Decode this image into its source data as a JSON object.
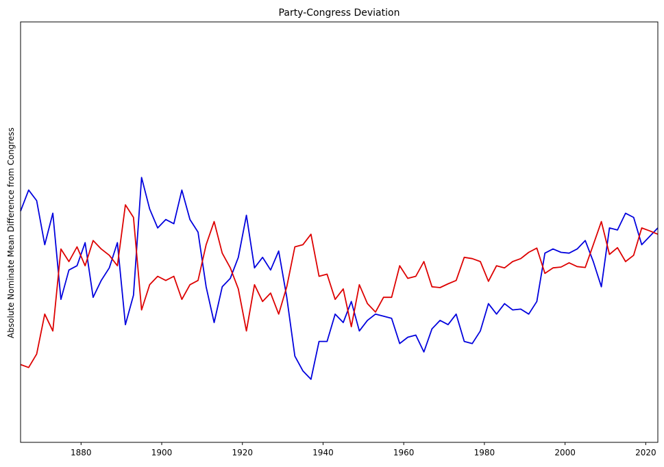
{
  "chart_data": {
    "type": "line",
    "title": "Party-Congress Deviation",
    "xlabel": "",
    "ylabel": "Absolute Nominate Mean Difference from Congress",
    "xlim": [
      1865,
      2023
    ],
    "ylim": [
      0,
      1
    ],
    "grid": false,
    "y_ticks_shown": false,
    "x_ticks": [
      1880,
      1900,
      1920,
      1940,
      1960,
      1980,
      2000,
      2020
    ],
    "x": [
      1865,
      1867,
      1869,
      1871,
      1873,
      1875,
      1877,
      1879,
      1881,
      1883,
      1885,
      1887,
      1889,
      1891,
      1893,
      1895,
      1897,
      1899,
      1901,
      1903,
      1905,
      1907,
      1909,
      1911,
      1913,
      1915,
      1917,
      1919,
      1921,
      1923,
      1925,
      1927,
      1929,
      1931,
      1933,
      1935,
      1937,
      1939,
      1941,
      1943,
      1945,
      1947,
      1949,
      1951,
      1953,
      1955,
      1957,
      1959,
      1961,
      1963,
      1965,
      1967,
      1969,
      1971,
      1973,
      1975,
      1977,
      1979,
      1981,
      1983,
      1985,
      1987,
      1989,
      1991,
      1993,
      1995,
      1997,
      1999,
      2001,
      2003,
      2005,
      2007,
      2009,
      2011,
      2013,
      2015,
      2017,
      2019,
      2021,
      2023
    ],
    "series": [
      {
        "color": "#0000dd",
        "values": [
          0.55,
          0.6,
          0.575,
          0.47,
          0.545,
          0.34,
          0.41,
          0.42,
          0.475,
          0.345,
          0.385,
          0.415,
          0.475,
          0.28,
          0.35,
          0.63,
          0.555,
          0.51,
          0.53,
          0.52,
          0.6,
          0.53,
          0.5,
          0.37,
          0.285,
          0.37,
          0.39,
          0.44,
          0.54,
          0.415,
          0.44,
          0.41,
          0.455,
          0.345,
          0.205,
          0.17,
          0.15,
          0.24,
          0.24,
          0.305,
          0.285,
          0.335,
          0.265,
          0.29,
          0.305,
          0.3,
          0.295,
          0.235,
          0.25,
          0.255,
          0.215,
          0.27,
          0.29,
          0.28,
          0.305,
          0.24,
          0.235,
          0.265,
          0.33,
          0.305,
          0.33,
          0.315,
          0.317,
          0.305,
          0.335,
          0.45,
          0.46,
          0.452,
          0.45,
          0.46,
          0.48,
          0.43,
          0.37,
          0.51,
          0.505,
          0.545,
          0.535,
          0.47,
          0.49,
          0.51
        ]
      },
      {
        "color": "#dd0000",
        "values": [
          0.185,
          0.178,
          0.21,
          0.305,
          0.265,
          0.46,
          0.43,
          0.465,
          0.42,
          0.48,
          0.46,
          0.445,
          0.42,
          0.565,
          0.535,
          0.315,
          0.375,
          0.395,
          0.385,
          0.395,
          0.34,
          0.375,
          0.385,
          0.47,
          0.525,
          0.45,
          0.415,
          0.365,
          0.265,
          0.375,
          0.335,
          0.355,
          0.305,
          0.37,
          0.465,
          0.47,
          0.495,
          0.395,
          0.4,
          0.34,
          0.365,
          0.275,
          0.375,
          0.33,
          0.31,
          0.345,
          0.345,
          0.42,
          0.39,
          0.395,
          0.43,
          0.37,
          0.368,
          0.377,
          0.385,
          0.44,
          0.437,
          0.43,
          0.383,
          0.42,
          0.415,
          0.43,
          0.437,
          0.452,
          0.462,
          0.402,
          0.415,
          0.417,
          0.427,
          0.418,
          0.416,
          0.47,
          0.525,
          0.447,
          0.463,
          0.43,
          0.445,
          0.51,
          0.503,
          0.495
        ]
      }
    ]
  }
}
